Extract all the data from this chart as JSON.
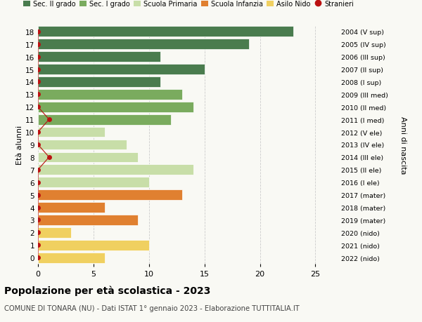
{
  "ages": [
    18,
    17,
    16,
    15,
    14,
    13,
    12,
    11,
    10,
    9,
    8,
    7,
    6,
    5,
    4,
    3,
    2,
    1,
    0
  ],
  "right_labels": [
    "2004 (V sup)",
    "2005 (IV sup)",
    "2006 (III sup)",
    "2007 (II sup)",
    "2008 (I sup)",
    "2009 (III med)",
    "2010 (II med)",
    "2011 (I med)",
    "2012 (V ele)",
    "2013 (IV ele)",
    "2014 (III ele)",
    "2015 (II ele)",
    "2016 (I ele)",
    "2017 (mater)",
    "2018 (mater)",
    "2019 (mater)",
    "2020 (nido)",
    "2021 (nido)",
    "2022 (nido)"
  ],
  "bar_values": [
    23,
    19,
    11,
    15,
    11,
    13,
    14,
    12,
    6,
    8,
    9,
    14,
    10,
    13,
    6,
    9,
    3,
    10,
    6
  ],
  "bar_colors": [
    "#4a7c4e",
    "#4a7c4e",
    "#4a7c4e",
    "#4a7c4e",
    "#4a7c4e",
    "#7aab5e",
    "#7aab5e",
    "#7aab5e",
    "#c8dea8",
    "#c8dea8",
    "#c8dea8",
    "#c8dea8",
    "#c8dea8",
    "#e08030",
    "#e08030",
    "#e08030",
    "#f0d060",
    "#f0d060",
    "#f0d060"
  ],
  "stranieri_values": [
    0,
    0,
    0,
    0,
    0,
    0,
    0,
    1,
    0,
    0,
    1,
    0,
    0,
    0,
    0,
    0,
    0,
    0,
    0
  ],
  "stranieri_color": "#bb1111",
  "legend_labels": [
    "Sec. II grado",
    "Sec. I grado",
    "Scuola Primaria",
    "Scuola Infanzia",
    "Asilo Nido",
    "Stranieri"
  ],
  "legend_colors": [
    "#4a7c4e",
    "#7aab5e",
    "#c8dea8",
    "#e08030",
    "#f0d060",
    "#bb1111"
  ],
  "ylabel_left": "Età alunni",
  "ylabel_right": "Anni di nascita",
  "title": "Popolazione per età scolastica - 2023",
  "subtitle": "COMUNE DI TONARA (NU) - Dati ISTAT 1° gennaio 2023 - Elaborazione TUTTITALIA.IT",
  "xlim": [
    0,
    27
  ],
  "bg_color": "#f9f9f4",
  "grid_color": "#cccccc"
}
